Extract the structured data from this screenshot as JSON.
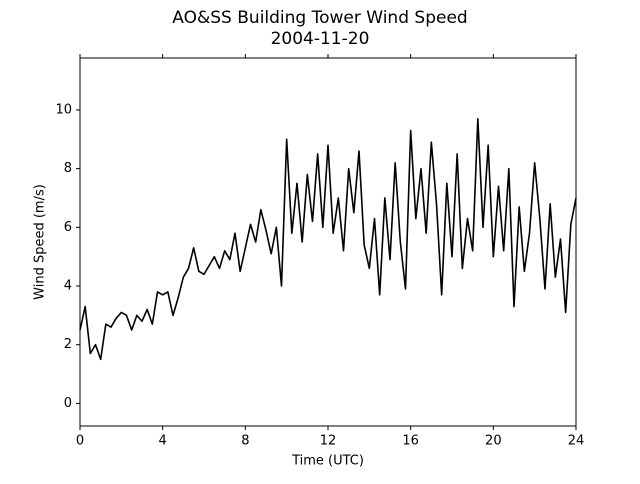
{
  "chart_data": {
    "type": "line",
    "title": "AO&SS Building Tower Wind Speed",
    "subtitle": "2004-11-20",
    "x_label": "Time (UTC)",
    "y_label": "Wind Speed (m/s)",
    "x": [
      0,
      0.25,
      0.5,
      0.75,
      1,
      1.25,
      1.5,
      1.75,
      2,
      2.25,
      2.5,
      2.75,
      3,
      3.25,
      3.5,
      3.75,
      4,
      4.25,
      4.5,
      4.75,
      5,
      5.25,
      5.5,
      5.75,
      6,
      6.25,
      6.5,
      6.75,
      7,
      7.25,
      7.5,
      7.75,
      8,
      8.25,
      8.5,
      8.75,
      9,
      9.25,
      9.5,
      9.75,
      10,
      10.25,
      10.5,
      10.75,
      11,
      11.25,
      11.5,
      11.75,
      12,
      12.25,
      12.5,
      12.75,
      13,
      13.25,
      13.5,
      13.75,
      14,
      14.25,
      14.5,
      14.75,
      15,
      15.25,
      15.5,
      15.75,
      16,
      16.25,
      16.5,
      16.75,
      17,
      17.25,
      17.5,
      17.75,
      18,
      18.25,
      18.5,
      18.75,
      19,
      19.25,
      19.5,
      19.75,
      20,
      20.25,
      20.5,
      20.75,
      21,
      21.25,
      21.5,
      21.75,
      22,
      22.25,
      22.5,
      22.75,
      23,
      23.25,
      23.5,
      23.75,
      24
    ],
    "series": [
      {
        "name": "Wind Speed",
        "color": "#000000",
        "values": [
          2.5,
          3.3,
          1.7,
          2.0,
          1.5,
          2.7,
          2.6,
          2.9,
          3.1,
          3.0,
          2.5,
          3.0,
          2.8,
          3.2,
          2.7,
          3.8,
          3.7,
          3.8,
          3.0,
          3.6,
          4.3,
          4.6,
          5.3,
          4.5,
          4.4,
          4.7,
          5.0,
          4.6,
          5.2,
          4.9,
          5.8,
          4.5,
          5.3,
          6.1,
          5.5,
          6.6,
          5.9,
          5.1,
          6.0,
          4.0,
          9.0,
          5.8,
          7.5,
          5.5,
          7.8,
          6.2,
          8.5,
          6.0,
          8.8,
          5.8,
          7.0,
          5.2,
          8.0,
          6.5,
          8.6,
          5.4,
          4.6,
          6.3,
          3.7,
          7.0,
          4.9,
          8.2,
          5.5,
          3.9,
          9.3,
          6.3,
          8.0,
          5.8,
          8.9,
          6.8,
          3.7,
          7.5,
          5.0,
          8.5,
          4.6,
          6.3,
          5.2,
          9.7,
          6.0,
          8.8,
          5.0,
          7.4,
          5.2,
          8.0,
          3.3,
          6.7,
          4.5,
          5.8,
          8.2,
          6.3,
          3.9,
          6.8,
          4.3,
          5.6,
          3.1,
          6.1,
          7.0
        ]
      }
    ],
    "xlim": [
      0,
      24
    ],
    "ylim": [
      -0.77,
      11.77
    ],
    "xticks": [
      0,
      4,
      8,
      12,
      16,
      20,
      24
    ],
    "yticks": [
      0,
      2,
      4,
      6,
      8,
      10
    ]
  }
}
